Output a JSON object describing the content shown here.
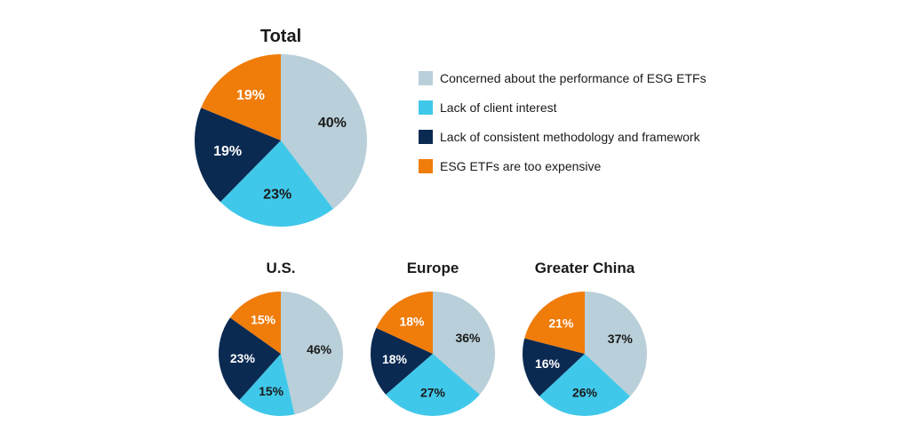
{
  "legend": [
    {
      "label": "Concerned about the performance of ESG ETFs",
      "color": "#b9cfd9"
    },
    {
      "label": "Lack of client interest",
      "color": "#40c8ea"
    },
    {
      "label": "Lack of consistent methodology and framework",
      "color": "#0b2a52"
    },
    {
      "label": "ESG ETFs are too expensive",
      "color": "#f07c0a"
    }
  ],
  "chart_data": [
    {
      "type": "pie",
      "title": "Total",
      "categories": [
        "Concerned about the performance of ESG ETFs",
        "Lack of client interest",
        "Lack of consistent methodology and framework",
        "ESG ETFs are too expensive"
      ],
      "values": [
        40,
        23,
        19,
        19
      ],
      "labels": [
        "40%",
        "23%",
        "19%",
        "19%"
      ]
    },
    {
      "type": "pie",
      "title": "U.S.",
      "categories": [
        "Concerned about the performance of ESG ETFs",
        "Lack of client interest",
        "Lack of consistent methodology and framework",
        "ESG ETFs are too expensive"
      ],
      "values": [
        46,
        15,
        23,
        15
      ],
      "labels": [
        "46%",
        "15%",
        "23%",
        "15%"
      ]
    },
    {
      "type": "pie",
      "title": "Europe",
      "categories": [
        "Concerned about the performance of ESG ETFs",
        "Lack of client interest",
        "Lack of consistent methodology and framework",
        "ESG ETFs are too expensive"
      ],
      "values": [
        36,
        27,
        18,
        18
      ],
      "labels": [
        "36%",
        "27%",
        "18%",
        "18%"
      ]
    },
    {
      "type": "pie",
      "title": "Greater China",
      "categories": [
        "Concerned about the performance of ESG ETFs",
        "Lack of client interest",
        "Lack of consistent methodology and framework",
        "ESG ETFs are too expensive"
      ],
      "values": [
        37,
        26,
        16,
        21
      ],
      "labels": [
        "37%",
        "26%",
        "16%",
        "21%"
      ]
    }
  ]
}
